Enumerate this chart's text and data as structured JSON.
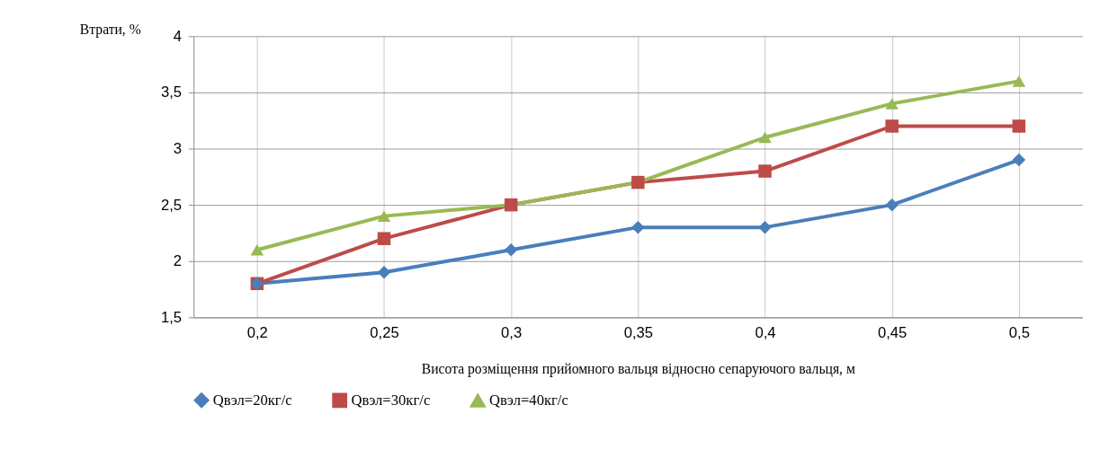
{
  "chart_data": {
    "type": "line",
    "categories": [
      "0,2",
      "0,25",
      "0,3",
      "0,35",
      "0,4",
      "0,45",
      "0,5"
    ],
    "series": [
      {
        "name": "Qвэл=20кг/с",
        "color": "#4a7ebb",
        "marker": "diamond",
        "values": [
          1.8,
          1.9,
          2.1,
          2.3,
          2.3,
          2.5,
          2.9
        ]
      },
      {
        "name": "Qвэл=30кг/с",
        "color": "#be4b48",
        "marker": "square",
        "values": [
          1.8,
          2.2,
          2.5,
          2.7,
          2.8,
          3.2,
          3.2
        ]
      },
      {
        "name": "Qвэл=40кг/с",
        "color": "#98b954",
        "marker": "triangle",
        "values": [
          2.1,
          2.4,
          2.5,
          2.7,
          3.1,
          3.4,
          3.6
        ]
      }
    ],
    "xlabel": "Висота розміщення прийомного вальця відносно сепаруючого вальця, м",
    "ylabel": "Втрати, %",
    "ylim": [
      1.5,
      4
    ],
    "yticks": [
      {
        "value": 1.5,
        "label": "1,5"
      },
      2,
      {
        "value": 2.5,
        "label": "2,5"
      },
      3,
      {
        "value": 3.5,
        "label": "3,5"
      },
      4
    ],
    "grid": true,
    "legend": "bottom",
    "line_style": "solid"
  }
}
